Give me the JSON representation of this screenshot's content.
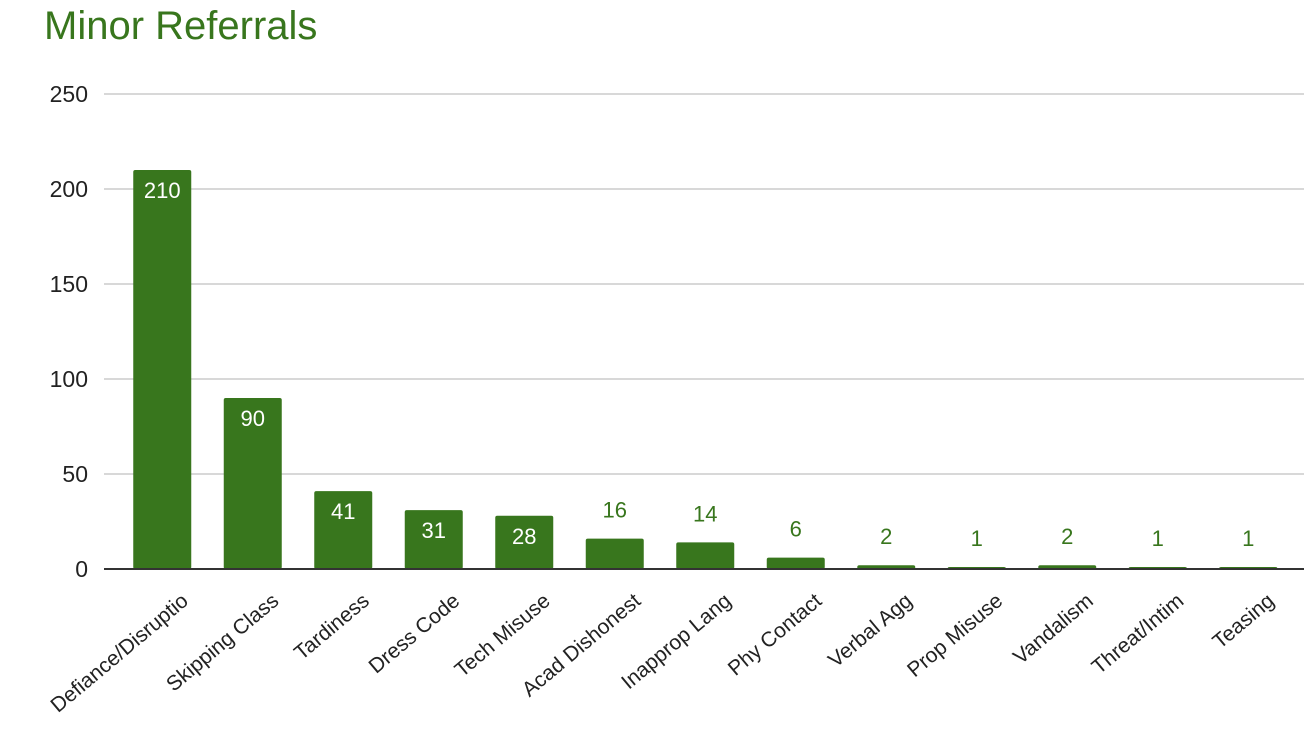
{
  "colors": {
    "bar": "#38761d",
    "title": "#38761d",
    "outside_label": "#38761d",
    "inside_label": "#ffffff",
    "gridline": "#cccccc",
    "baseline": "#333333",
    "tick_text": "#222222"
  },
  "chart_data": {
    "type": "bar",
    "title": "Minor Referrals",
    "xlabel": "",
    "ylabel": "",
    "categories": [
      "Defiance/Disruptio",
      "Skipping Class",
      "Tardiness",
      "Dress Code",
      "Tech Misuse",
      "Acad Dishonest",
      "Inapprop Lang",
      "Phy Contact",
      "Verbal Agg",
      "Prop Misuse",
      "Vandalism",
      "Threat/Intim",
      "Teasing"
    ],
    "values": [
      210,
      90,
      41,
      31,
      28,
      16,
      14,
      6,
      2,
      1,
      2,
      1,
      1
    ],
    "ylim": [
      0,
      250
    ],
    "yticks": [
      0,
      50,
      100,
      150,
      200,
      250
    ],
    "grid": true,
    "legend": "none",
    "data_labels": true
  }
}
